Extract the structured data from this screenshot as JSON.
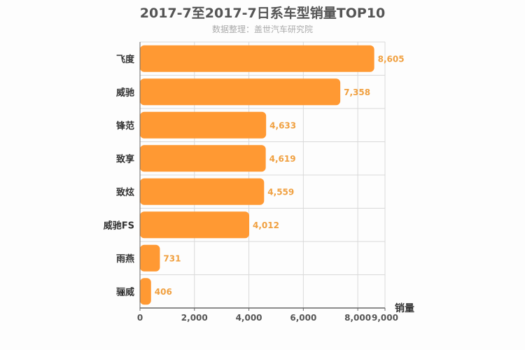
{
  "chart_data": {
    "type": "bar",
    "orientation": "horizontal",
    "title": "2017-7至2017-7日系车型销量TOP10",
    "subtitle": "数据整理：盖世汽车研究院",
    "categories": [
      "飞度",
      "威驰",
      "锋范",
      "致享",
      "致炫",
      "威驰FS",
      "雨燕",
      "骊威"
    ],
    "values": [
      8605,
      7358,
      4633,
      4619,
      4559,
      4012,
      731,
      406
    ],
    "value_labels": [
      "8,605",
      "7,358",
      "4,633",
      "4,619",
      "4,559",
      "4,012",
      "731",
      "406"
    ],
    "xlabel": "销量",
    "ylabel": "",
    "xlim": [
      0,
      9000
    ],
    "x_ticks": [
      0,
      2000,
      4000,
      6000,
      8000,
      9000
    ],
    "x_tick_labels": [
      "0",
      "2,000",
      "4,000",
      "6,000",
      "8,000",
      "9,000"
    ],
    "grid": true,
    "colors": {
      "bar": "#ff9933",
      "value_label": "#f0a040",
      "grid": "#d9d9d9",
      "axis": "#666666"
    }
  }
}
